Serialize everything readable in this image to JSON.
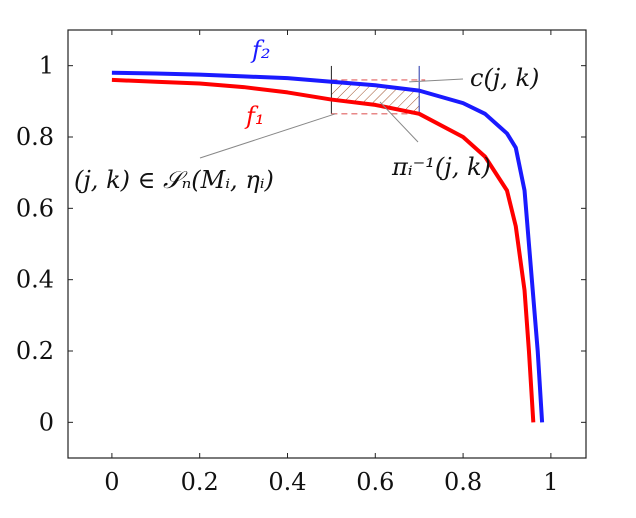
{
  "chart_data": {
    "type": "line",
    "xlim": [
      -0.1,
      1.08
    ],
    "ylim": [
      -0.1,
      1.1
    ],
    "x_ticks": [
      {
        "value": 0,
        "label": "0"
      },
      {
        "value": 0.2,
        "label": "0.2"
      },
      {
        "value": 0.4,
        "label": "0.4"
      },
      {
        "value": 0.6,
        "label": "0.6"
      },
      {
        "value": 0.8,
        "label": "0.8"
      },
      {
        "value": 1,
        "label": "1"
      }
    ],
    "y_ticks": [
      {
        "value": 0,
        "label": "0"
      },
      {
        "value": 0.2,
        "label": "0.2"
      },
      {
        "value": 0.4,
        "label": "0.4"
      },
      {
        "value": 0.6,
        "label": "0.6"
      },
      {
        "value": 0.8,
        "label": "0.8"
      },
      {
        "value": 1,
        "label": "1"
      }
    ],
    "grid": false,
    "series": [
      {
        "name": "f₂",
        "color": "#1a1aff",
        "points": [
          [
            0,
            0.98
          ],
          [
            0.1,
            0.978
          ],
          [
            0.2,
            0.975
          ],
          [
            0.3,
            0.97
          ],
          [
            0.4,
            0.965
          ],
          [
            0.5,
            0.955
          ],
          [
            0.6,
            0.945
          ],
          [
            0.7,
            0.93
          ],
          [
            0.8,
            0.895
          ],
          [
            0.85,
            0.865
          ],
          [
            0.9,
            0.81
          ],
          [
            0.92,
            0.77
          ],
          [
            0.94,
            0.65
          ],
          [
            0.95,
            0.5
          ],
          [
            0.96,
            0.35
          ],
          [
            0.97,
            0.2
          ],
          [
            0.98,
            0.0
          ]
        ]
      },
      {
        "name": "f₁",
        "color": "#ff0000",
        "points": [
          [
            0,
            0.96
          ],
          [
            0.1,
            0.955
          ],
          [
            0.2,
            0.95
          ],
          [
            0.3,
            0.94
          ],
          [
            0.4,
            0.925
          ],
          [
            0.5,
            0.905
          ],
          [
            0.6,
            0.89
          ],
          [
            0.7,
            0.865
          ],
          [
            0.8,
            0.8
          ],
          [
            0.85,
            0.745
          ],
          [
            0.9,
            0.65
          ],
          [
            0.92,
            0.55
          ],
          [
            0.94,
            0.37
          ],
          [
            0.95,
            0.2
          ],
          [
            0.96,
            0.0
          ]
        ]
      }
    ],
    "box": {
      "x0": 0.5,
      "x1": 0.7,
      "y0": 0.865,
      "y1": 0.96
    },
    "annotations": {
      "f2_label": "f₂",
      "f1_label": "f₁",
      "c_label": "c(j, k)",
      "pi_label": "πᵢ⁻¹(j, k)",
      "s_label": "(j, k) ∈ 𝒮ₙ(Mᵢ, ηᵢ)"
    }
  }
}
